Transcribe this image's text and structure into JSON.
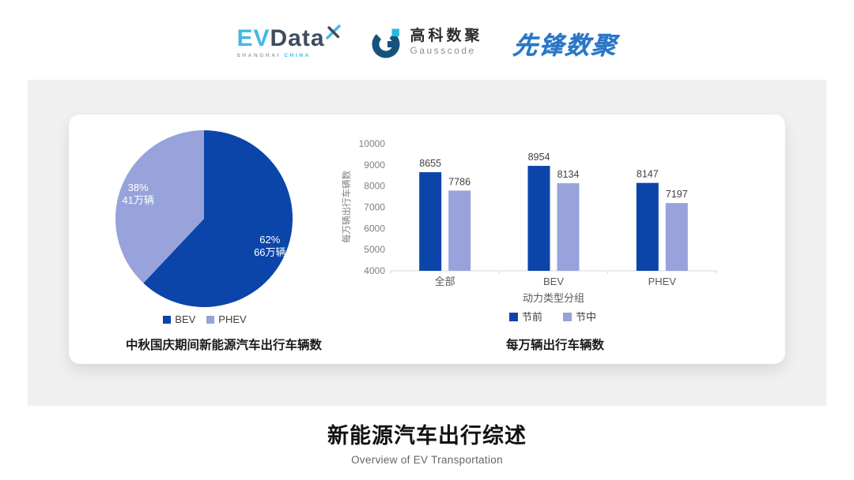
{
  "header": {
    "evdata": {
      "ev": "EV",
      "data": "Data",
      "sub_left": "SHANGHAI",
      "sub_right": "CHINA"
    },
    "gausscode": {
      "cn": "高科数聚",
      "en": "Gausscode"
    },
    "xianfeng": {
      "text": "先锋数聚"
    }
  },
  "footer": {
    "title": "新能源汽车出行综述",
    "subtitle": "Overview of EV Transportation"
  },
  "colors": {
    "primary": "#0b45a9",
    "secondary": "#97a3da",
    "panel_gray": "#f0f0f0",
    "cyan": "#41b9e6",
    "slate": "#3e4c5e",
    "gauss_blue": "#15537a",
    "gauss_cyan": "#2ab9df",
    "xianfeng_blue": "#2a76c6",
    "axis_line": "#d9d9d9",
    "axis_text": "#7f7f7f",
    "label_text": "#3f3f3f",
    "category_text": "#595959"
  },
  "chart_data": [
    {
      "type": "pie",
      "title": "中秋国庆期间新能源汽车出行车辆数",
      "slices": [
        {
          "label": "BEV",
          "percent": 62,
          "percent_label": "62%",
          "value_text": "66万辆",
          "color_key": "primary"
        },
        {
          "label": "PHEV",
          "percent": 38,
          "percent_label": "38%",
          "value_text": "41万辆",
          "color_key": "secondary"
        }
      ],
      "legend": [
        "BEV",
        "PHEV"
      ],
      "legend_position": "bottom"
    },
    {
      "type": "bar",
      "title": "每万辆出行车辆数",
      "categories": [
        "全部",
        "BEV",
        "PHEV"
      ],
      "series": [
        {
          "name": "节前",
          "values": [
            8655,
            8954,
            8147
          ],
          "color_key": "primary"
        },
        {
          "name": "节中",
          "values": [
            7786,
            8134,
            7197
          ],
          "color_key": "secondary"
        }
      ],
      "ylabel": "每万辆出行车辆数",
      "xlabel": "动力类型分组",
      "ylim": [
        4000,
        10000
      ],
      "ytick_step": 1000,
      "grid": false,
      "legend_position": "bottom"
    }
  ]
}
